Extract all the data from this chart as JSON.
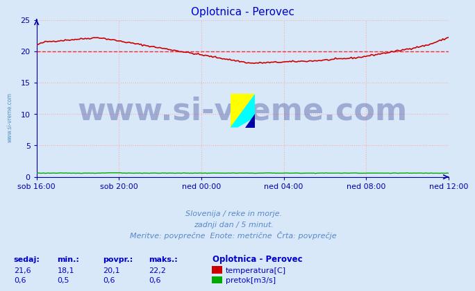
{
  "title": "Oplotnica - Perovec",
  "background_color": "#d8e8f8",
  "plot_bg_color": "#d8e8f8",
  "xlabel_ticks": [
    "sob 16:00",
    "sob 20:00",
    "ned 00:00",
    "ned 04:00",
    "ned 08:00",
    "ned 12:00"
  ],
  "yticks": [
    0,
    5,
    10,
    15,
    20,
    25
  ],
  "ylim": [
    0,
    25
  ],
  "grid_color_x": "#ffaaaa",
  "grid_color_y": "#ffaaaa",
  "grid_style": ":",
  "hline_value": 20,
  "hline_color": "#ff0000",
  "hline_style": "--",
  "temp_color": "#cc0000",
  "flow_color": "#00aa00",
  "watermark_text": "www.si-vreme.com",
  "watermark_color": "#1a237e",
  "watermark_alpha": 0.3,
  "watermark_fontsize": 32,
  "subtitle1": "Slovenija / reke in morje.",
  "subtitle2": "zadnji dan / 5 minut.",
  "subtitle3": "Meritve: povprečne  Enote: metrične  Črta: povprečje",
  "footer_color": "#5588cc",
  "legend_title": "Oplotnica - Perovec",
  "legend_temp_label": "temperatura[C]",
  "legend_flow_label": "pretok[m3/s]",
  "stat_headers": [
    "sedaj:",
    "min.:",
    "povpr.:",
    "maks.:"
  ],
  "temp_stats": [
    "21,6",
    "18,1",
    "20,1",
    "22,2"
  ],
  "flow_stats": [
    "0,6",
    "0,5",
    "0,6",
    "0,6"
  ],
  "n_points": 289,
  "axis_color": "#0000cc",
  "tick_color": "#0000aa",
  "spine_color": "#0000aa",
  "left_watermark": "www.si-vreme.com",
  "left_watermark_color": "#4488bb",
  "logo_yellow": "#ffff00",
  "logo_cyan": "#00ffff",
  "logo_blue": "#0000aa"
}
